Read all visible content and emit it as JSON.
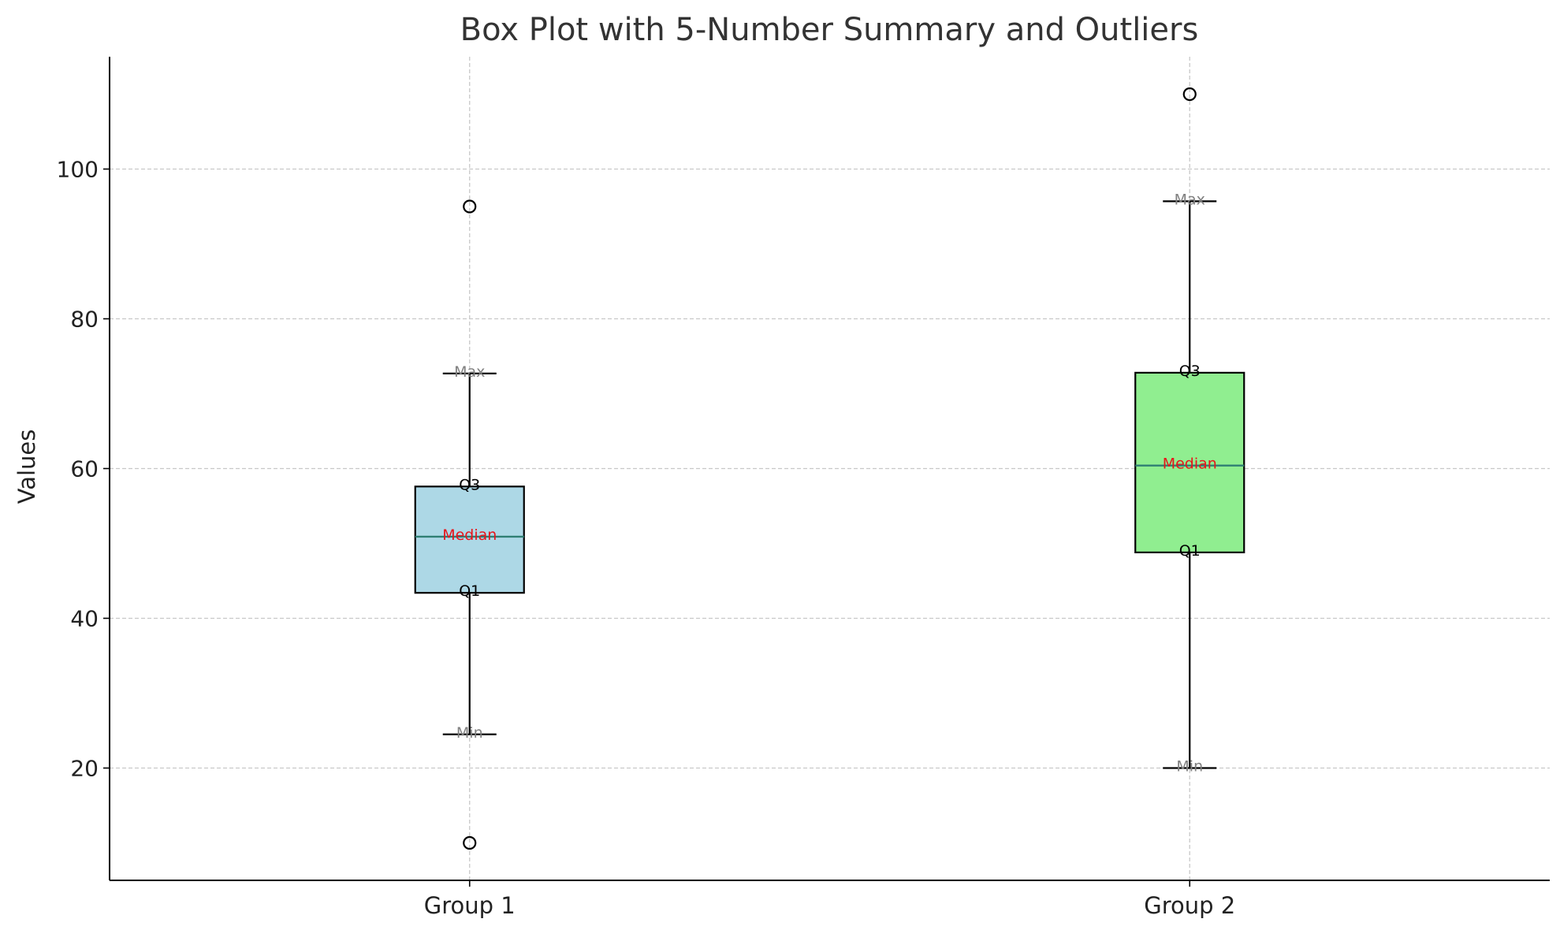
{
  "chart_data": {
    "type": "box",
    "title": "Box Plot with 5-Number Summary and Outliers",
    "xlabel": "",
    "ylabel": "Values",
    "ylim": [
      5,
      115
    ],
    "yticks": [
      20,
      40,
      60,
      80,
      100
    ],
    "grid": true,
    "grid_style": "dashed",
    "annotation_labels": {
      "max": "Max",
      "q3": "Q3",
      "median": "Median",
      "q1": "Q1",
      "min": "Min"
    },
    "colors": {
      "median_line": "#2f7f73",
      "median_text": "#e8141b",
      "min_max_text": "#808080",
      "quartile_text": "#000000",
      "grid": "#c8c8c8",
      "text": "#333333"
    },
    "groups": [
      {
        "category": "Group 1",
        "min": 24.5,
        "q1": 43.4,
        "median": 50.9,
        "q3": 57.6,
        "max": 72.7,
        "outliers": [
          95,
          10
        ],
        "color": "#add8e6"
      },
      {
        "category": "Group 2",
        "min": 20,
        "q1": 48.8,
        "median": 60.4,
        "q3": 72.8,
        "max": 95.7,
        "outliers": [
          110
        ],
        "color": "#90ee90"
      }
    ]
  }
}
